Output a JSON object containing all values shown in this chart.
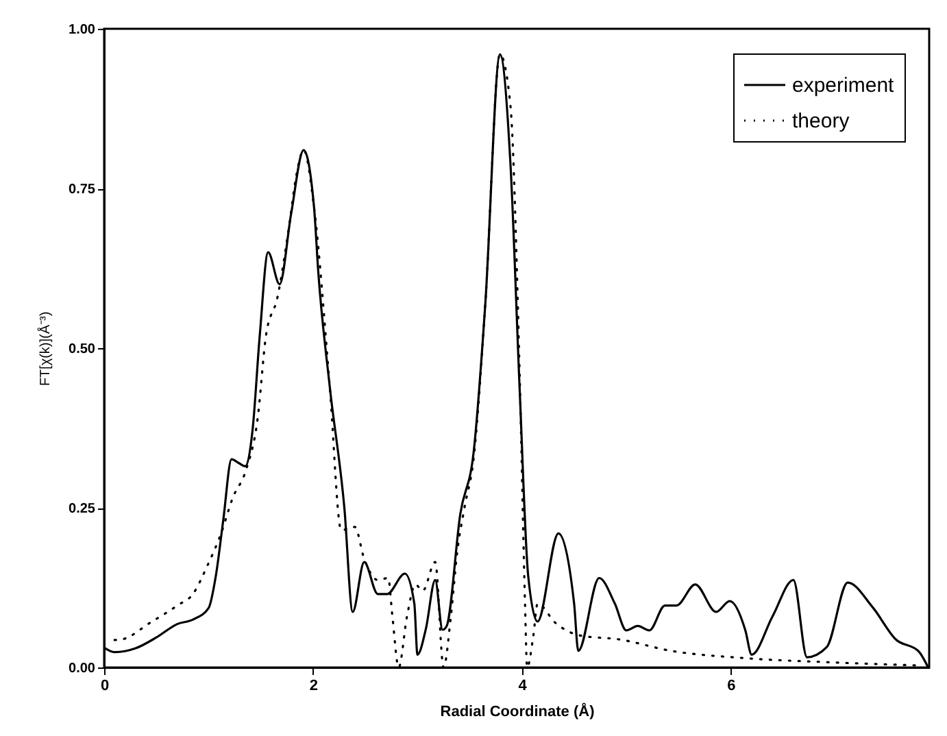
{
  "chart_data": {
    "type": "line",
    "xlabel": "Radial Coordinate (Å)",
    "ylabel": "FT[χ(k)](Å⁻³)",
    "xlim": [
      0,
      7.9
    ],
    "xticks": [
      0,
      2,
      4,
      6
    ],
    "ylim": [
      0,
      1
    ],
    "yticks": [
      {
        "value": 0,
        "label": "0.00"
      },
      {
        "value": 0.25,
        "label": "0.25"
      },
      {
        "value": 0.5,
        "label": "0.50"
      },
      {
        "value": 0.75,
        "label": "0.75"
      },
      {
        "value": 1,
        "label": "1.00"
      }
    ],
    "grid": false,
    "legend": "top right",
    "series": [
      {
        "name": "experiment",
        "color": "#000000",
        "line_style": "solid",
        "x": [
          0,
          0.1,
          0.3,
          0.5,
          0.7,
          0.85,
          1.0,
          1.07,
          1.14,
          1.22,
          1.29,
          1.35,
          1.42,
          1.49,
          1.57,
          1.68,
          1.79,
          1.91,
          2.01,
          2.05,
          2.16,
          2.3,
          2.38,
          2.49,
          2.62,
          2.71,
          2.88,
          2.97,
          3.0,
          3.08,
          3.17,
          3.24,
          3.28,
          3.41,
          3.54,
          3.65,
          3.79,
          3.89,
          3.98,
          4.06,
          4.15,
          4.35,
          4.5,
          4.54,
          4.74,
          4.89,
          5.0,
          5.11,
          5.22,
          5.37,
          5.48,
          5.66,
          5.86,
          5.99,
          6.14,
          6.2,
          6.4,
          6.6,
          6.73,
          6.92,
          7.12,
          7.36,
          7.58,
          7.8,
          7.89
        ],
        "values": [
          0.031,
          0.024,
          0.03,
          0.047,
          0.068,
          0.075,
          0.093,
          0.144,
          0.23,
          0.326,
          0.32,
          0.315,
          0.37,
          0.52,
          0.65,
          0.6,
          0.71,
          0.81,
          0.72,
          0.62,
          0.44,
          0.25,
          0.087,
          0.165,
          0.115,
          0.115,
          0.147,
          0.1,
          0.02,
          0.06,
          0.137,
          0.059,
          0.065,
          0.24,
          0.34,
          0.57,
          0.96,
          0.79,
          0.43,
          0.144,
          0.072,
          0.21,
          0.1,
          0.026,
          0.14,
          0.1,
          0.058,
          0.065,
          0.058,
          0.097,
          0.097,
          0.13,
          0.087,
          0.104,
          0.058,
          0.02,
          0.08,
          0.137,
          0.016,
          0.032,
          0.133,
          0.094,
          0.044,
          0.025,
          0
        ]
      },
      {
        "name": "theory",
        "color": "#000000",
        "line_style": "dotted",
        "x": [
          0.1,
          0.17,
          0.44,
          0.7,
          0.85,
          0.99,
          1.12,
          1.23,
          1.36,
          1.47,
          1.55,
          1.66,
          1.77,
          1.84,
          1.91,
          2.01,
          2.16,
          2.27,
          2.4,
          2.49,
          2.62,
          2.72,
          2.76,
          2.82,
          2.9,
          2.98,
          3.05,
          3.17,
          3.25,
          3.32,
          3.38,
          3.45,
          3.54,
          3.65,
          3.79,
          3.89,
          3.98,
          4.03,
          4.05,
          4.11,
          4.15,
          4.32,
          4.56,
          4.93,
          5.43,
          6.1,
          6.97,
          7.83
        ],
        "values": [
          0.043,
          0.044,
          0.07,
          0.097,
          0.115,
          0.16,
          0.21,
          0.265,
          0.31,
          0.39,
          0.52,
          0.58,
          0.69,
          0.77,
          0.81,
          0.72,
          0.44,
          0.215,
          0.22,
          0.17,
          0.137,
          0.14,
          0.08,
          0,
          0.08,
          0.13,
          0.12,
          0.165,
          0,
          0.08,
          0.18,
          0.25,
          0.33,
          0.57,
          0.96,
          0.88,
          0.45,
          0.1,
          0,
          0.05,
          0.1,
          0.07,
          0.05,
          0.044,
          0.026,
          0.015,
          0.008,
          0.003
        ]
      }
    ]
  }
}
